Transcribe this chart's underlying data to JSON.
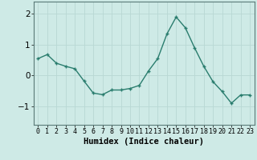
{
  "x": [
    0,
    1,
    2,
    3,
    4,
    5,
    6,
    7,
    8,
    9,
    10,
    11,
    12,
    13,
    14,
    15,
    16,
    17,
    18,
    19,
    20,
    21,
    22,
    23
  ],
  "y": [
    0.55,
    0.68,
    0.4,
    0.3,
    0.22,
    -0.18,
    -0.57,
    -0.62,
    -0.47,
    -0.47,
    -0.42,
    -0.32,
    0.15,
    0.55,
    1.35,
    1.9,
    1.55,
    0.9,
    0.3,
    -0.2,
    -0.52,
    -0.9,
    -0.63,
    -0.63
  ],
  "xlabel": "Humidex (Indice chaleur)",
  "ylim": [
    -1.6,
    2.4
  ],
  "yticks": [
    -1,
    0,
    1,
    2
  ],
  "line_color": "#2a7d6e",
  "marker_color": "#2a7d6e",
  "bg_color": "#ceeae6",
  "grid_color": "#b8d8d4",
  "axis_color": "#5a7a78",
  "xlabel_fontsize": 7.5,
  "ytick_fontsize": 7.5,
  "xtick_fontsize": 6.0
}
